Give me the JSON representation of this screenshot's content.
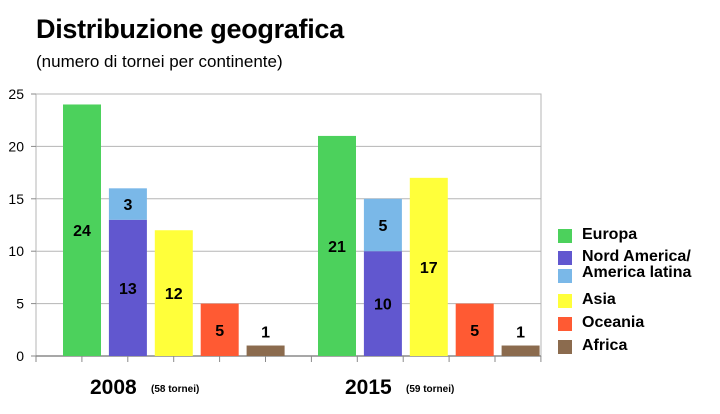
{
  "header": {
    "title": "Distribuzione geografica",
    "subtitle": "(numero di tornei per continente)"
  },
  "chart_data": {
    "type": "bar",
    "stacked_segments": true,
    "ylim": [
      0,
      25
    ],
    "yticks": [
      0,
      5,
      10,
      15,
      20,
      25
    ],
    "grid": true,
    "legend_position": "right",
    "groups": [
      {
        "year": "2008",
        "note": "(58 tornei)",
        "bars": [
          {
            "series": "Europa",
            "segments": [
              {
                "value": 24,
                "color_key": "europa",
                "label": "24"
              }
            ]
          },
          {
            "series": "Nord America / America latina",
            "segments": [
              {
                "value": 13,
                "color_key": "nord_america",
                "label": "13"
              },
              {
                "value": 3,
                "color_key": "america_latina",
                "label": "3"
              }
            ]
          },
          {
            "series": "Asia",
            "segments": [
              {
                "value": 12,
                "color_key": "asia",
                "label": "12"
              }
            ]
          },
          {
            "series": "Oceania",
            "segments": [
              {
                "value": 5,
                "color_key": "oceania",
                "label": "5"
              }
            ]
          },
          {
            "series": "Africa",
            "segments": [
              {
                "value": 1,
                "color_key": "africa",
                "label": "1",
                "label_outside": true
              }
            ]
          }
        ]
      },
      {
        "year": "2015",
        "note": "(59 tornei)",
        "bars": [
          {
            "series": "Europa",
            "segments": [
              {
                "value": 21,
                "color_key": "europa",
                "label": "21"
              }
            ]
          },
          {
            "series": "Nord America / America latina",
            "segments": [
              {
                "value": 10,
                "color_key": "nord_america",
                "label": "10"
              },
              {
                "value": 5,
                "color_key": "america_latina",
                "label": "5"
              }
            ]
          },
          {
            "series": "Asia",
            "segments": [
              {
                "value": 17,
                "color_key": "asia",
                "label": "17"
              }
            ]
          },
          {
            "series": "Oceania",
            "segments": [
              {
                "value": 5,
                "color_key": "oceania",
                "label": "5"
              }
            ]
          },
          {
            "series": "Africa",
            "segments": [
              {
                "value": 1,
                "color_key": "africa",
                "label": "1",
                "label_outside": true
              }
            ]
          }
        ]
      }
    ]
  },
  "colors": {
    "europa": "#4cd15c",
    "nord_america": "#6157cf",
    "america_latina": "#7ab8e8",
    "asia": "#ffff3a",
    "oceania": "#ff5a33",
    "africa": "#8b6b4e",
    "grid": "#b5b5b5",
    "axis": "#8a8a8a"
  },
  "legend": {
    "europa": "Europa",
    "nord_america_line1": "Nord America/",
    "nord_america_line2": "America latina",
    "asia": "Asia",
    "oceania": "Oceania",
    "africa": "Africa"
  }
}
